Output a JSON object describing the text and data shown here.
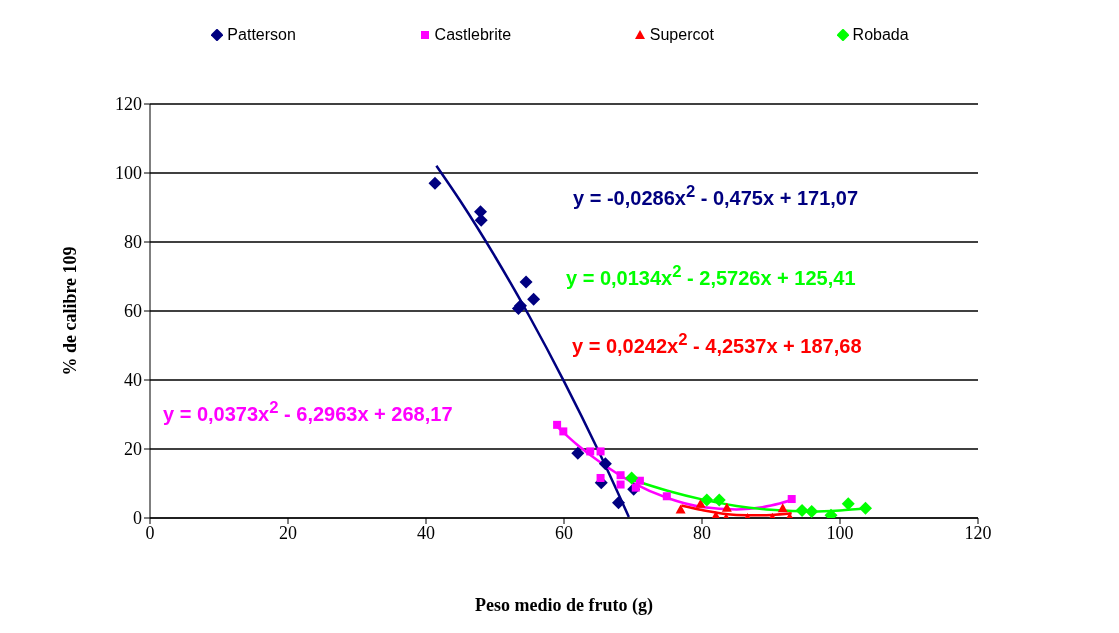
{
  "chart_data": {
    "type": "scatter",
    "xlabel": "Peso medio de fruto (g)",
    "ylabel": "% de calibre 109",
    "xlim": [
      0,
      120
    ],
    "xticks": [
      0,
      20,
      40,
      60,
      80,
      100,
      120
    ],
    "ylim": [
      0,
      120
    ],
    "yticks": [
      0,
      20,
      40,
      60,
      80,
      100,
      120
    ],
    "grid": "y",
    "legend": "top",
    "series": [
      {
        "name": "Patterson",
        "color": "#000080",
        "marker": "diamond",
        "x": [
          41.3,
          47.9,
          48.0,
          54.5,
          55.6,
          53.4,
          53.7,
          62.0,
          65.4,
          66.0,
          70.1,
          67.9
        ],
        "values": [
          97,
          88.8,
          86.3,
          68.4,
          63.4,
          60.7,
          61.5,
          18.8,
          10.2,
          15.7,
          8.3,
          4.4
        ]
      },
      {
        "name": "Castlebrite",
        "color": "#ff00ff",
        "marker": "square",
        "x": [
          59.0,
          59.9,
          63.8,
          65.3,
          65.3,
          68.2,
          68.2,
          71.0,
          70.4,
          74.9,
          93.0
        ],
        "values": [
          27.0,
          25.1,
          19.3,
          19.3,
          11.6,
          12.4,
          9.7,
          10.8,
          8.8,
          6.3,
          5.5
        ]
      },
      {
        "name": "Supercot",
        "color": "#ff0000",
        "marker": "triangle",
        "x": [
          76.9,
          79.8,
          83.6,
          82.0,
          83.5,
          86.6,
          90.2,
          91.7,
          92.7
        ],
        "values": [
          2.5,
          4.1,
          3.0,
          0.6,
          0,
          0,
          0.1,
          2.8,
          0.2
        ]
      },
      {
        "name": "Robada",
        "color": "#00ff00",
        "marker": "diamond",
        "x": [
          69.8,
          80.7,
          82.5,
          94.5,
          95.9,
          98.7,
          101.2,
          103.7
        ],
        "values": [
          11.6,
          5.2,
          5.2,
          2.2,
          1.9,
          0.8,
          4.1,
          2.8
        ]
      },
      {
        "type": "line",
        "color": "#000080",
        "marker": "none",
        "x": [
          41.5,
          45,
          50,
          55,
          60,
          65,
          69.4
        ],
        "values": [
          102.1,
          91.8,
          75.8,
          58.4,
          39.6,
          19.4,
          0.3
        ]
      },
      {
        "type": "line",
        "color": "#ff00ff",
        "marker": "none",
        "x": [
          59,
          62,
          65,
          70,
          75,
          80,
          85,
          90,
          93
        ],
        "values": [
          26.5,
          21.1,
          16.5,
          10.2,
          5.8,
          3.2,
          2.5,
          3.6,
          5.2
        ]
      },
      {
        "type": "line",
        "color": "#ff0000",
        "marker": "none",
        "x": [
          77,
          80,
          85,
          88,
          90,
          93
        ],
        "values": [
          3.6,
          2.3,
          0.9,
          0.8,
          0.9,
          1.4
        ]
      },
      {
        "type": "line",
        "color": "#00ff00",
        "marker": "none",
        "x": [
          70,
          75,
          80,
          85,
          90,
          96,
          100,
          104
        ],
        "values": [
          11.0,
          7.9,
          5.4,
          3.5,
          2.4,
          1.9,
          2.2,
          2.8
        ]
      }
    ],
    "annotations": [
      "y = -0,0286x$^{2}$ - 0,475x + 171,07",
      "y = 0,0242x$^{2}$ - 4,2537x + 187,68",
      "y = 0,0373x$^{2}$ - 6,2963x + 268,17",
      "y = 0,0134x$^{2}$ - 2,5726x + 125,41"
    ]
  }
}
